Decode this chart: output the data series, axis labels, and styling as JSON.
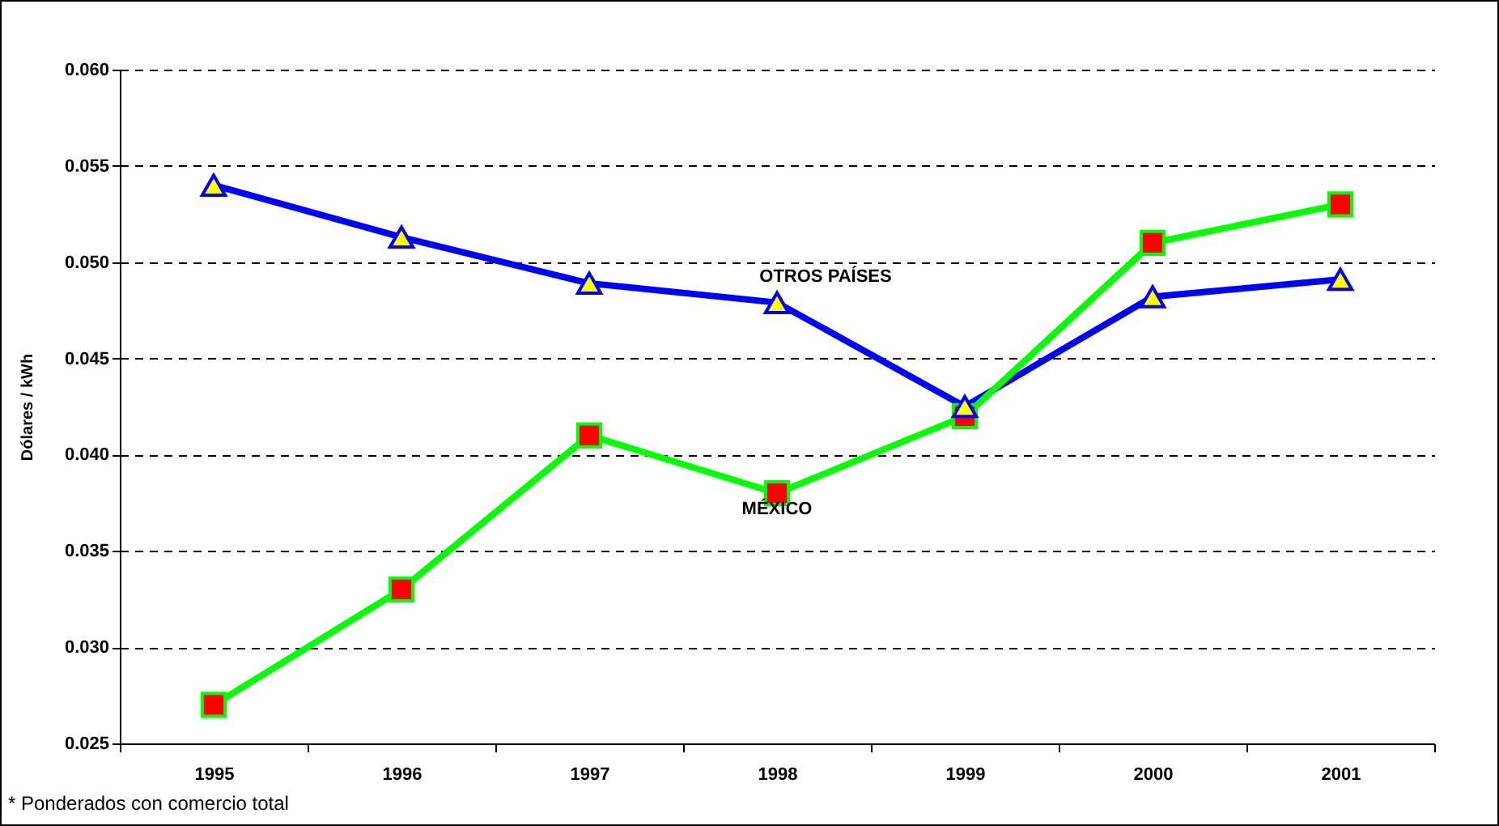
{
  "chart_data": {
    "type": "line",
    "ylabel": "Dólares / kWh",
    "categories": [
      "1995",
      "1996",
      "1997",
      "1998",
      "1999",
      "2000",
      "2001"
    ],
    "series": [
      {
        "name": "OTROS PAÍSES",
        "color": "#0000ff",
        "marker": "triangle",
        "values": [
          0.054,
          0.0513,
          0.0489,
          0.0479,
          0.0425,
          0.0482,
          0.0491
        ]
      },
      {
        "name": "MÉXICO",
        "color": "#00ff00",
        "marker": "square",
        "values": [
          0.027,
          0.033,
          0.041,
          0.038,
          0.042,
          0.051,
          0.053
        ]
      }
    ],
    "ylim": [
      0.025,
      0.06
    ],
    "yticks": [
      {
        "value": 0.025,
        "label": "0.025"
      },
      {
        "value": 0.03,
        "label": "0.030"
      },
      {
        "value": 0.035,
        "label": "0.035"
      },
      {
        "value": 0.04,
        "label": "0.040"
      },
      {
        "value": 0.045,
        "label": "0.045"
      },
      {
        "value": 0.05,
        "label": "0.050"
      },
      {
        "value": 0.055,
        "label": "0.055"
      },
      {
        "value": 0.06,
        "label": "0.060"
      }
    ],
    "grid": "y",
    "annotations": [
      "* Ponderados con comercio total"
    ]
  }
}
